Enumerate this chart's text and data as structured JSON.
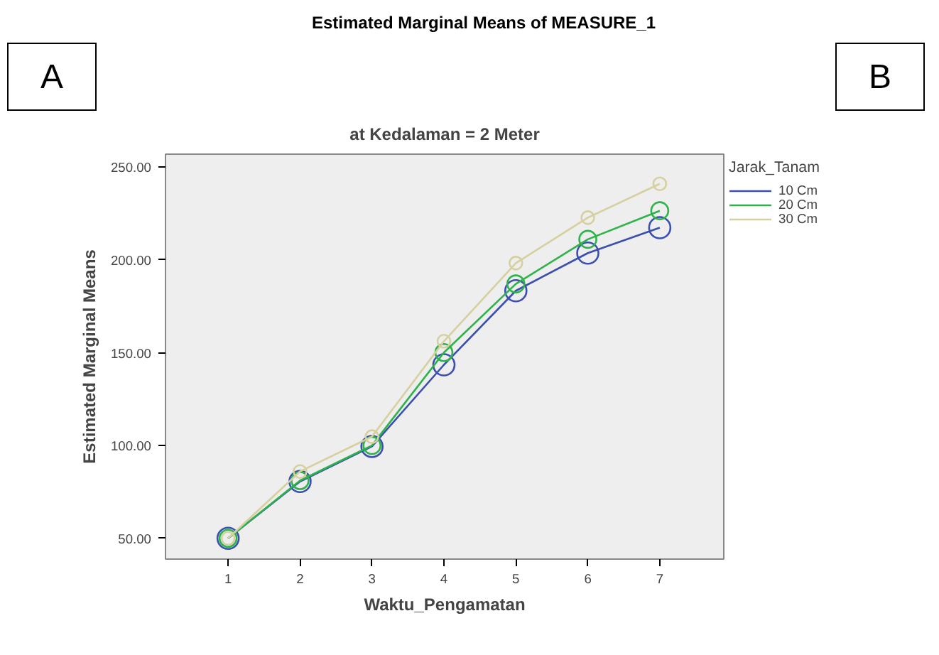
{
  "chart_data": {
    "type": "line",
    "title": "Estimated Marginal Means of MEASURE_1",
    "subtitle": "at Kedalaman = 2 Meter",
    "xlabel": "Waktu_Pengamatan",
    "ylabel": "Estimated Marginal Means",
    "legend_title": "Jarak_Tanam",
    "annotations": [
      "A",
      "B"
    ],
    "x": [
      1,
      2,
      3,
      4,
      5,
      6,
      7
    ],
    "series": [
      {
        "name": "10 Cm",
        "color": "#3b4fb0",
        "values": [
          50,
          80.6,
          99.5,
          143.5,
          183.4,
          203.7,
          217.4
        ]
      },
      {
        "name": "20 Cm",
        "color": "#2db34a",
        "values": [
          50,
          81.1,
          100,
          150.1,
          187.1,
          211.1,
          226.5
        ]
      },
      {
        "name": "30 Cm",
        "color": "#d6cfa0",
        "values": [
          50,
          86,
          104.8,
          156.2,
          198.3,
          222.8,
          241
        ]
      }
    ],
    "xlim": [
      0.13,
      7.89
    ],
    "ylim": [
      38.8,
      257
    ],
    "xticks": [
      1,
      2,
      3,
      4,
      5,
      6,
      7
    ],
    "yticks": [
      {
        "value": 50,
        "label": "50.00"
      },
      {
        "value": 100,
        "label": "100.00"
      },
      {
        "value": 150,
        "label": "150.00"
      },
      {
        "value": 200,
        "label": "200.00"
      },
      {
        "value": 250,
        "label": "250.00"
      }
    ],
    "grid": false,
    "legend": "right",
    "marker": "circle",
    "line_style": "solid"
  }
}
